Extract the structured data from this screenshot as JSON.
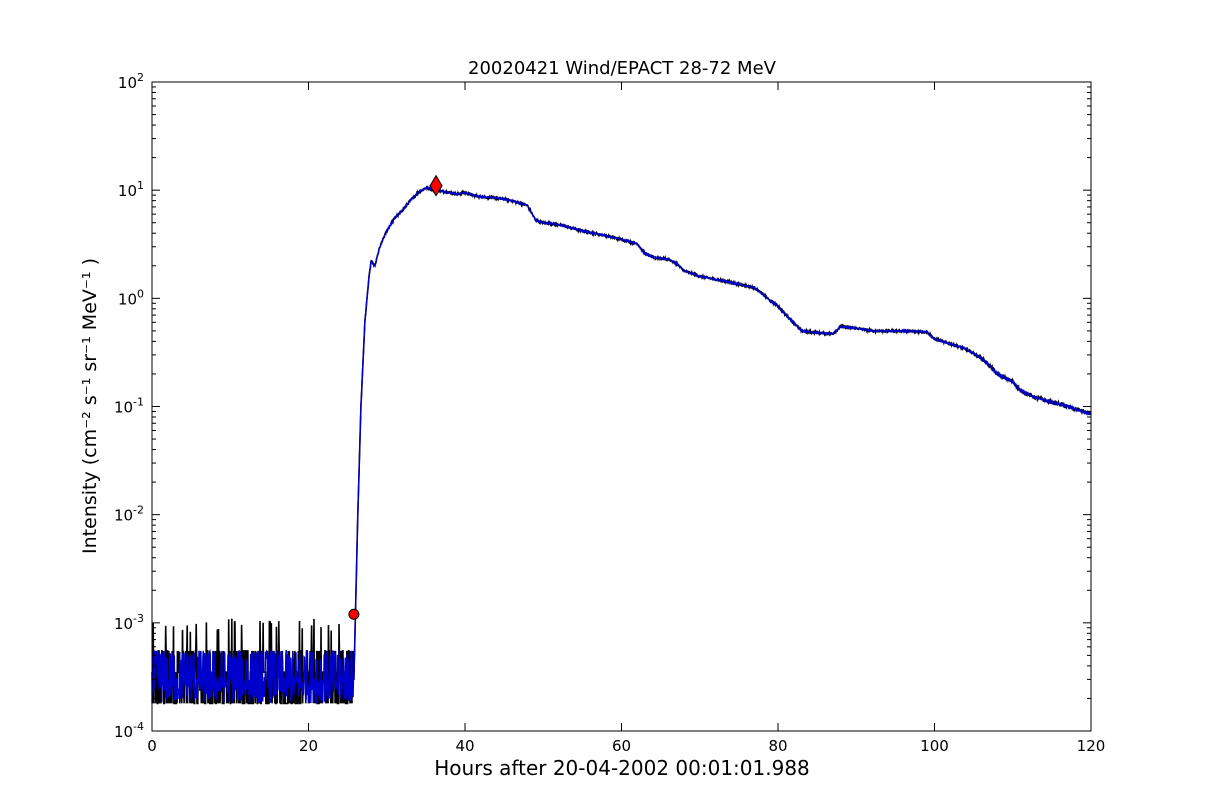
{
  "chart_data": {
    "type": "line",
    "title": "20020421 Wind/EPACT 28-72 MeV",
    "xlabel": "Hours after 20-04-2002 00:01:01.988",
    "ylabel": "Intensity (cm⁻² s⁻¹ sr⁻¹ MeV⁻¹ )",
    "xlim": [
      0,
      120
    ],
    "ylim": [
      0.0001,
      100
    ],
    "yscale": "log",
    "x_ticks": [
      0,
      20,
      40,
      60,
      80,
      100,
      120
    ],
    "y_ticks": [
      {
        "value": 0.0001,
        "base": "10",
        "exp": "-4"
      },
      {
        "value": 0.001,
        "base": "10",
        "exp": "-3"
      },
      {
        "value": 0.01,
        "base": "10",
        "exp": "-2"
      },
      {
        "value": 0.1,
        "base": "10",
        "exp": "-1"
      },
      {
        "value": 1,
        "base": "10",
        "exp": "0"
      },
      {
        "value": 10,
        "base": "10",
        "exp": "1"
      },
      {
        "value": 100,
        "base": "10",
        "exp": "2"
      }
    ],
    "grid": false,
    "series": [
      {
        "color": "#000000",
        "style": "raw-noisy",
        "x": [
          0,
          25.8,
          26.0,
          26.3,
          26.7,
          27.2,
          27.7,
          28.0,
          28.5,
          29.0,
          29.5,
          30.0,
          31.0,
          32.0,
          33.0,
          34.0,
          35.0,
          36.0,
          37.0,
          38.0,
          39.0,
          40.0,
          41.0,
          42.0,
          44.0,
          46.0,
          48.0,
          49.0,
          50.0,
          52.0,
          55.0,
          58.0,
          60.0,
          62.0,
          63.0,
          64.0,
          66.0,
          67.0,
          68.0,
          70.0,
          72.0,
          74.0,
          76.0,
          77.0,
          78.0,
          79.0,
          80.0,
          81.0,
          82.0,
          83.0,
          85.0,
          87.0,
          88.0,
          90.0,
          92.0,
          94.0,
          96.0,
          99.0,
          100.0,
          102.0,
          104.0,
          106.0,
          107.0,
          108.0,
          110.0,
          111.0,
          113.0,
          115.0,
          117.0,
          119.0,
          120.0
        ],
        "y": [
          0.0003,
          0.0003,
          0.0012,
          0.01,
          0.1,
          0.6,
          1.5,
          2.2,
          2.0,
          2.8,
          3.5,
          4.2,
          5.5,
          6.5,
          8.0,
          9.5,
          10.5,
          10.2,
          9.8,
          9.5,
          9.2,
          9.5,
          9.0,
          8.7,
          8.5,
          8.0,
          7.2,
          5.3,
          5.0,
          4.8,
          4.2,
          3.8,
          3.5,
          3.2,
          2.6,
          2.4,
          2.3,
          2.1,
          1.8,
          1.6,
          1.5,
          1.4,
          1.3,
          1.25,
          1.1,
          0.95,
          0.85,
          0.7,
          0.6,
          0.5,
          0.48,
          0.47,
          0.55,
          0.53,
          0.5,
          0.5,
          0.5,
          0.49,
          0.42,
          0.38,
          0.34,
          0.28,
          0.24,
          0.2,
          0.17,
          0.14,
          0.12,
          0.11,
          0.1,
          0.09,
          0.085
        ]
      },
      {
        "color": "#0000cc",
        "style": "smoothed",
        "x": [
          0,
          25.8,
          26.0,
          26.3,
          26.7,
          27.2,
          27.7,
          28.0,
          28.5,
          29.0,
          29.5,
          30.0,
          31.0,
          32.0,
          33.0,
          34.0,
          35.0,
          36.0,
          37.0,
          38.0,
          39.0,
          40.0,
          41.0,
          42.0,
          44.0,
          46.0,
          48.0,
          49.0,
          50.0,
          52.0,
          55.0,
          58.0,
          60.0,
          62.0,
          63.0,
          64.0,
          66.0,
          67.0,
          68.0,
          70.0,
          72.0,
          74.0,
          76.0,
          77.0,
          78.0,
          79.0,
          80.0,
          81.0,
          82.0,
          83.0,
          85.0,
          87.0,
          88.0,
          90.0,
          92.0,
          94.0,
          96.0,
          99.0,
          100.0,
          102.0,
          104.0,
          106.0,
          107.0,
          108.0,
          110.0,
          111.0,
          113.0,
          115.0,
          117.0,
          119.0,
          120.0
        ],
        "y": [
          0.0003,
          0.0003,
          0.0012,
          0.01,
          0.1,
          0.6,
          1.5,
          2.2,
          2.0,
          2.8,
          3.5,
          4.2,
          5.5,
          6.5,
          8.0,
          9.5,
          10.5,
          10.2,
          9.8,
          9.5,
          9.2,
          9.5,
          9.0,
          8.7,
          8.5,
          8.0,
          7.2,
          5.3,
          5.0,
          4.8,
          4.2,
          3.8,
          3.5,
          3.2,
          2.6,
          2.4,
          2.3,
          2.1,
          1.8,
          1.6,
          1.5,
          1.4,
          1.3,
          1.25,
          1.1,
          0.95,
          0.85,
          0.7,
          0.6,
          0.5,
          0.48,
          0.47,
          0.55,
          0.53,
          0.5,
          0.5,
          0.5,
          0.49,
          0.42,
          0.38,
          0.34,
          0.28,
          0.24,
          0.2,
          0.17,
          0.14,
          0.12,
          0.11,
          0.1,
          0.09,
          0.085
        ]
      }
    ],
    "markers": [
      {
        "shape": "circle",
        "x": 25.8,
        "y": 0.0012,
        "color": "#ff0000"
      },
      {
        "shape": "diamond",
        "x": 36.3,
        "y": 11.0,
        "color": "#ff0000"
      }
    ]
  }
}
